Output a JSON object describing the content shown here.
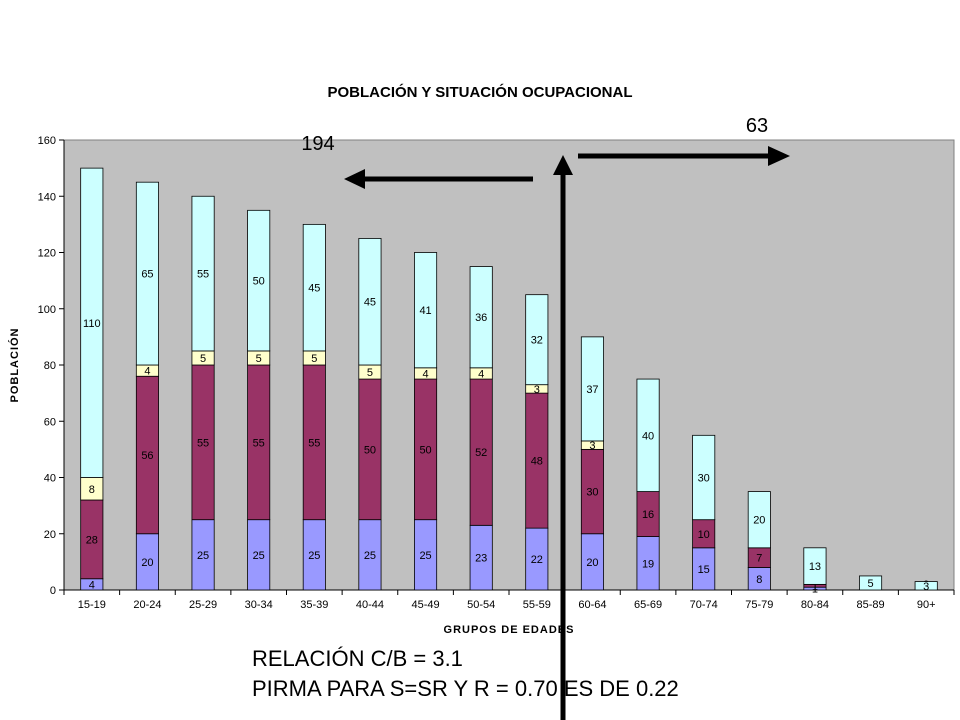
{
  "chart_data": {
    "type": "bar",
    "stacked": true,
    "title": "POBLACIÓN Y SITUACIÓN OCUPACIONAL",
    "xlabel": "GRUPOS DE EDADES",
    "ylabel": "POBLACIÓN",
    "ylim": [
      0,
      160
    ],
    "yticks": [
      0,
      20,
      40,
      60,
      80,
      100,
      120,
      140,
      160
    ],
    "grid": false,
    "plot_background": "#c0c0c0",
    "categories": [
      "15-19",
      "20-24",
      "25-29",
      "30-34",
      "35-39",
      "40-44",
      "45-49",
      "50-54",
      "55-59",
      "60-64",
      "65-69",
      "70-74",
      "75-79",
      "80-84",
      "85-89",
      "90+"
    ],
    "series": [
      {
        "color": "#9999ff",
        "values": [
          4,
          20,
          25,
          25,
          25,
          25,
          25,
          23,
          22,
          20,
          19,
          15,
          8,
          1,
          0,
          0
        ],
        "labels": [
          "4",
          "20",
          "25",
          "25",
          "25",
          "25",
          "25",
          "23",
          "22",
          "20",
          "19",
          "15",
          "8",
          "1",
          "0",
          "0"
        ]
      },
      {
        "color": "#993366",
        "values": [
          28,
          56,
          55,
          55,
          55,
          50,
          50,
          52,
          48,
          30,
          16,
          10,
          7,
          1,
          0,
          0
        ],
        "labels": [
          "28",
          "56",
          "55",
          "55",
          "55",
          "50",
          "50",
          "52",
          "48",
          "30",
          "16",
          "10",
          "7",
          "1",
          "",
          ""
        ]
      },
      {
        "color": "#ffffcc",
        "values": [
          8,
          4,
          5,
          5,
          5,
          5,
          4,
          4,
          3,
          3,
          0,
          0,
          0,
          0,
          0,
          0
        ],
        "labels": [
          "8",
          "4",
          "5",
          "5",
          "5",
          "5",
          "4",
          "4",
          "3",
          "3",
          "0",
          "0",
          "0",
          "0",
          "",
          ""
        ]
      },
      {
        "color": "#ccffff",
        "values": [
          110,
          65,
          55,
          50,
          45,
          45,
          41,
          36,
          32,
          37,
          40,
          30,
          20,
          13,
          5,
          3
        ],
        "labels": [
          "110",
          "65",
          "55",
          "50",
          "45",
          "45",
          "41",
          "36",
          "32",
          "37",
          "40",
          "30",
          "20",
          "13",
          "5",
          "3"
        ]
      }
    ],
    "annotations": {
      "left_arrow_label": "194",
      "right_arrow_label": "63",
      "divider_between": [
        "55-59",
        "60-64"
      ]
    }
  },
  "notes": {
    "line1": "RELACIÓN C/B = 3.1",
    "line2": "PIRMA PARA S=SR Y R = 0.70 ES DE 0.22"
  }
}
